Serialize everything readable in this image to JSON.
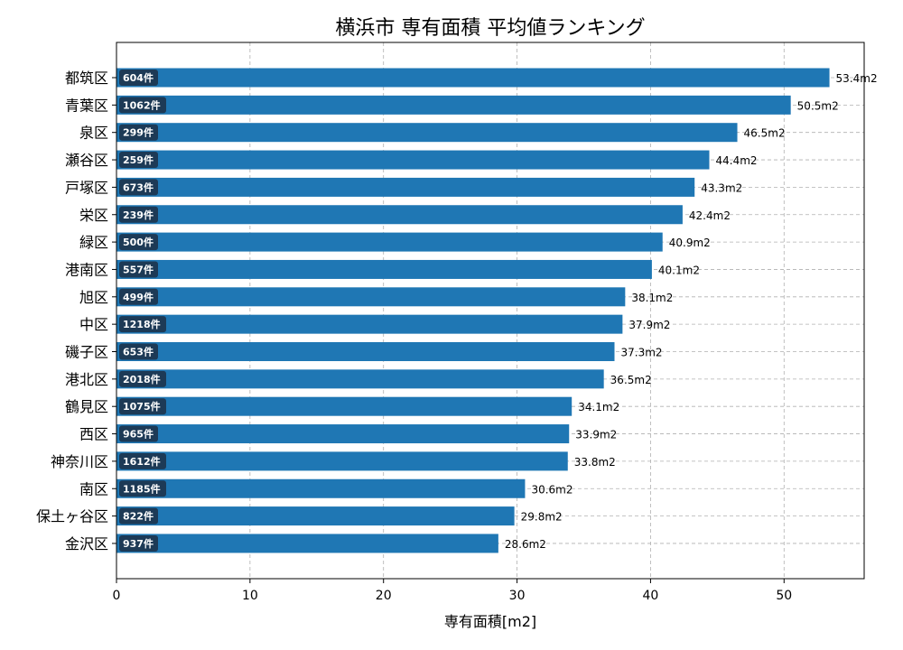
{
  "chart_data": {
    "type": "bar",
    "orientation": "horizontal",
    "title": "横浜市 専有面積 平均値ランキング",
    "xlabel": "専有面積[m2]",
    "ylabel": "",
    "xlim": [
      0,
      56
    ],
    "x_ticks": [
      "0",
      "10",
      "20",
      "30",
      "40",
      "50"
    ],
    "grid": true,
    "bar_color": "#1f77b4",
    "badge_color": "#1d3a56",
    "categories": [
      "都筑区",
      "青葉区",
      "泉区",
      "瀬谷区",
      "戸塚区",
      "栄区",
      "緑区",
      "港南区",
      "旭区",
      "中区",
      "磯子区",
      "港北区",
      "鶴見区",
      "西区",
      "神奈川区",
      "南区",
      "保土ヶ谷区",
      "金沢区"
    ],
    "values": [
      53.4,
      50.5,
      46.5,
      44.4,
      43.3,
      42.4,
      40.9,
      40.1,
      38.1,
      37.9,
      37.3,
      36.5,
      34.1,
      33.9,
      33.8,
      30.6,
      29.8,
      28.6
    ],
    "value_labels": [
      "53.4m2",
      "50.5m2",
      "46.5m2",
      "44.4m2",
      "43.3m2",
      "42.4m2",
      "40.9m2",
      "40.1m2",
      "38.1m2",
      "37.9m2",
      "37.3m2",
      "36.5m2",
      "34.1m2",
      "33.9m2",
      "33.8m2",
      "30.6m2",
      "29.8m2",
      "28.6m2"
    ],
    "count_labels": [
      "604件",
      "1062件",
      "299件",
      "259件",
      "673件",
      "239件",
      "500件",
      "557件",
      "499件",
      "1218件",
      "653件",
      "2018件",
      "1075件",
      "965件",
      "1612件",
      "1185件",
      "822件",
      "937件"
    ]
  }
}
